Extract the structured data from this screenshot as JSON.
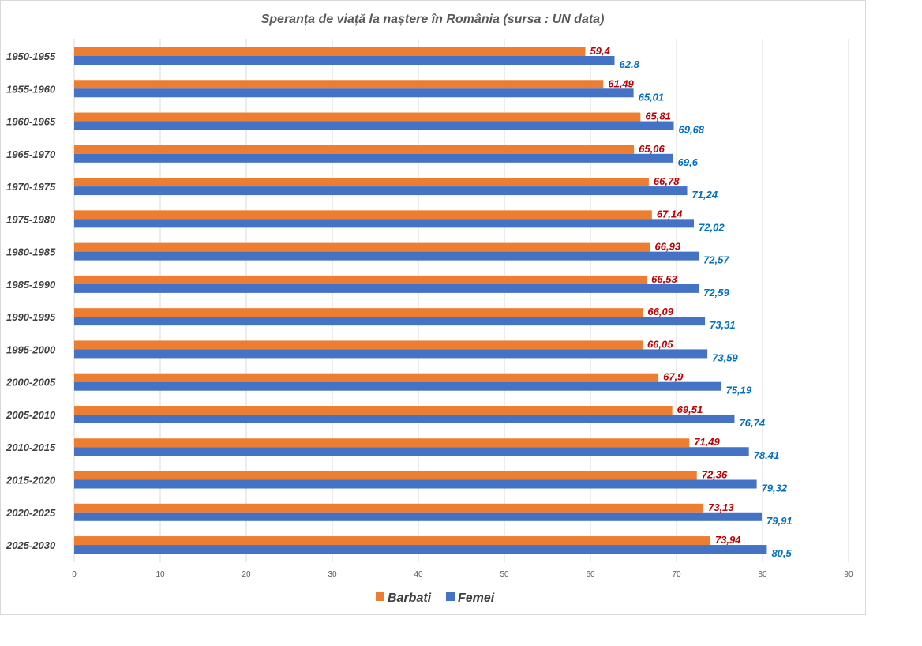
{
  "chart_data": {
    "type": "bar",
    "orientation": "horizontal",
    "title": "Speranța de viață la naștere în România (sursa : UN data)",
    "categories": [
      "1950-1955",
      "1955-1960",
      "1960-1965",
      "1965-1970",
      "1970-1975",
      "1975-1980",
      "1980-1985",
      "1985-1990",
      "1990-1995",
      "1995-2000",
      "2000-2005",
      "2005-2010",
      "2010-2015",
      "2015-2020",
      "2020-2025",
      "2025-2030"
    ],
    "series": [
      {
        "name": "Barbati",
        "color": "#ed7d31",
        "label_color": "#c00000",
        "values": [
          59.4,
          61.49,
          65.81,
          65.06,
          66.78,
          67.14,
          66.93,
          66.53,
          66.09,
          66.05,
          67.9,
          69.51,
          71.49,
          72.36,
          73.13,
          73.94
        ],
        "labels": [
          "59,4",
          "61,49",
          "65,81",
          "65,06",
          "66,78",
          "67,14",
          "66,93",
          "66,53",
          "66,09",
          "66,05",
          "67,9",
          "69,51",
          "71,49",
          "72,36",
          "73,13",
          "73,94"
        ]
      },
      {
        "name": "Femei",
        "color": "#4472c4",
        "label_color": "#0070c0",
        "values": [
          62.8,
          65.01,
          69.68,
          69.6,
          71.24,
          72.02,
          72.57,
          72.59,
          73.31,
          73.59,
          75.19,
          76.74,
          78.41,
          79.32,
          79.91,
          80.5
        ],
        "labels": [
          "62,8",
          "65,01",
          "69,68",
          "69,6",
          "71,24",
          "72,02",
          "72,57",
          "72,59",
          "73,31",
          "73,59",
          "75,19",
          "76,74",
          "78,41",
          "79,32",
          "79,91",
          "80,5"
        ]
      }
    ],
    "xlim": [
      0,
      90
    ],
    "xticks": [
      "0",
      "10",
      "20",
      "30",
      "40",
      "50",
      "60",
      "70",
      "80",
      "90"
    ],
    "grid": true,
    "legend": "bottom"
  }
}
